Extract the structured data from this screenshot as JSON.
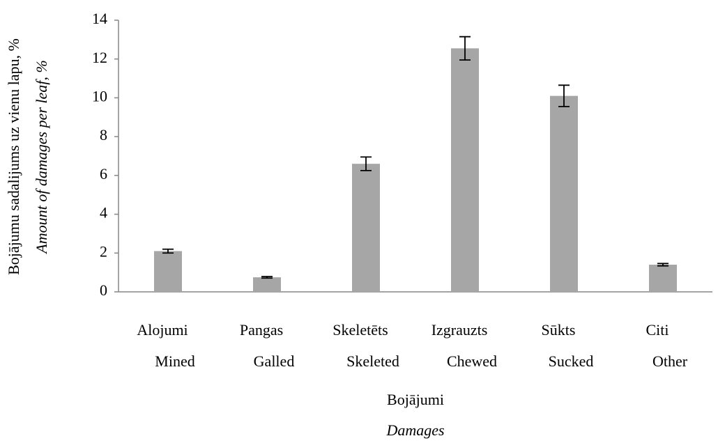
{
  "chart_data": {
    "type": "bar",
    "categories": [
      [
        "Alojumi",
        "Mined"
      ],
      [
        "Pangas",
        "Galled"
      ],
      [
        "Skeletēts",
        "Skeleted"
      ],
      [
        "Izgrauzts",
        "Chewed"
      ],
      [
        "Sūkts",
        "Sucked"
      ],
      [
        "Citi",
        "Other"
      ]
    ],
    "values": [
      2.1,
      0.75,
      6.6,
      12.55,
      10.1,
      1.4
    ],
    "errors": [
      0.1,
      0.04,
      0.35,
      0.6,
      0.55,
      0.06
    ],
    "color": "#a6a6a6",
    "y_label": [
      "Bojājumu sadalijums uz vienu lapu, %",
      "Amount of damages per leaf, %"
    ],
    "x_label": [
      "Bojājumi",
      "Damages"
    ],
    "ylim": [
      0,
      14
    ],
    "yticks": [
      0,
      2,
      4,
      6,
      8,
      10,
      12,
      14
    ],
    "grid": false
  }
}
